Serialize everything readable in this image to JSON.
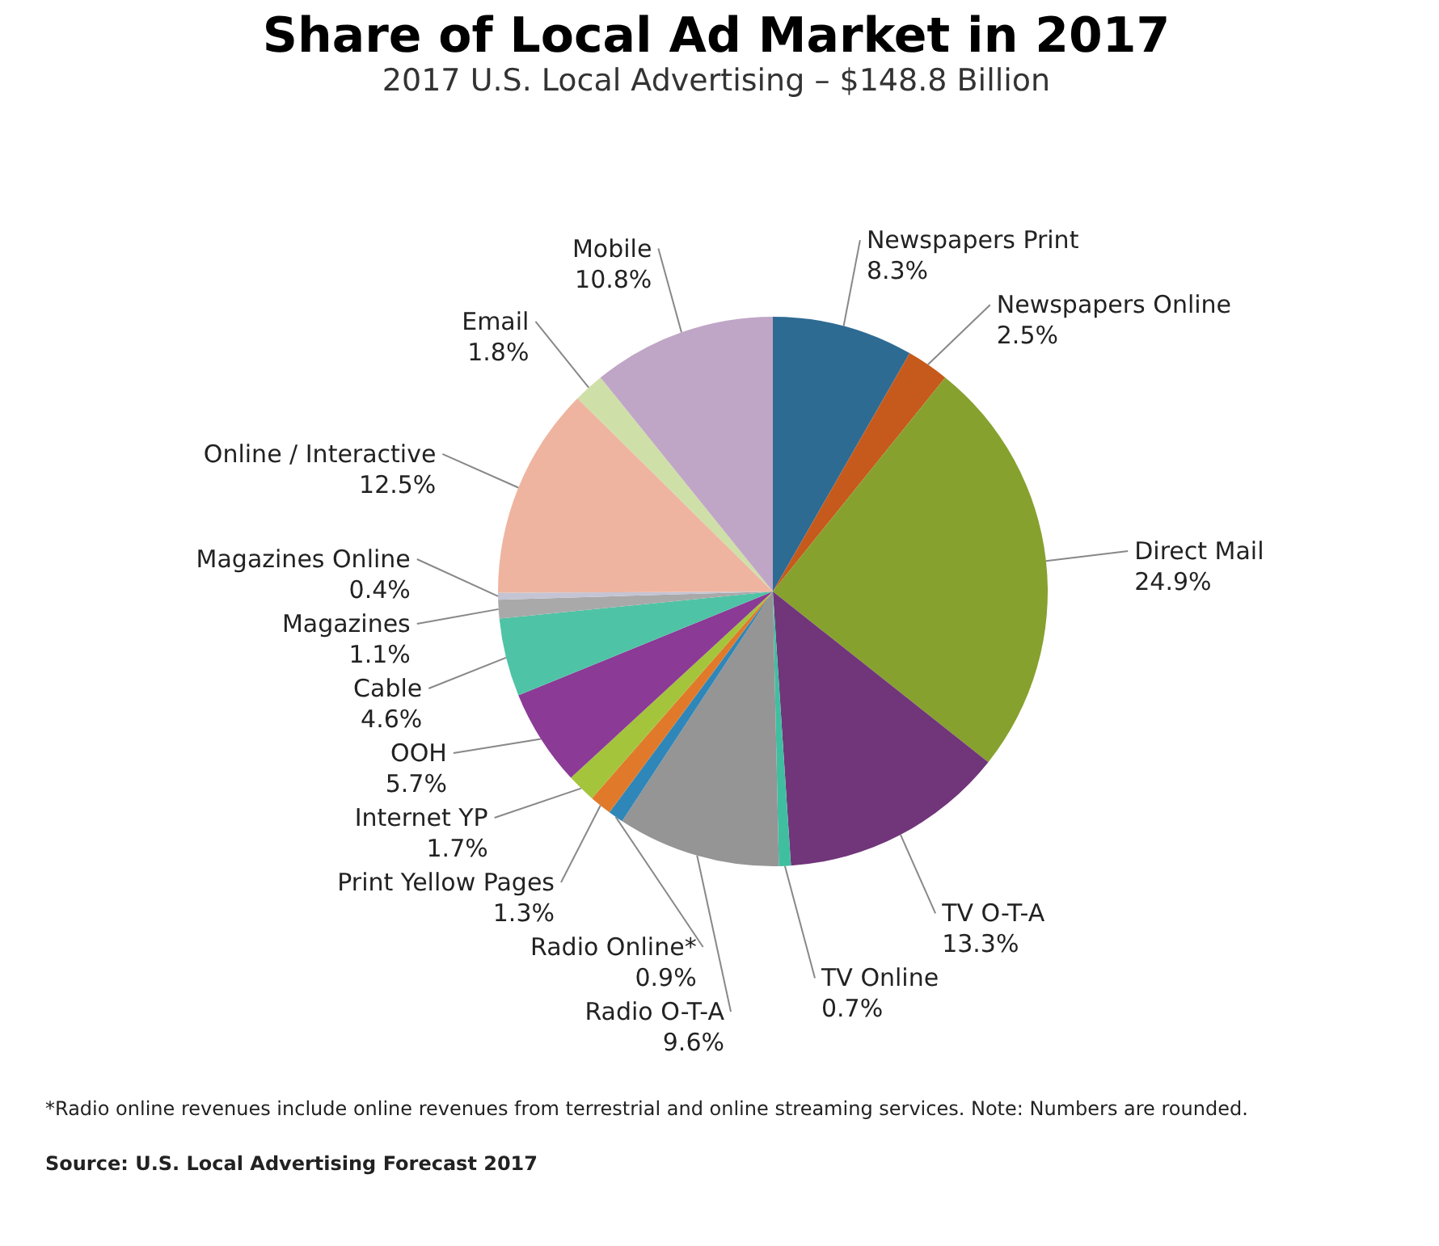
{
  "chart_data": {
    "type": "pie",
    "title": "Share of Local Ad Market in 2017",
    "subtitle": "2017 U.S. Local Advertising – $148.8 Billion",
    "categories": [
      "Newspapers Print",
      "Newspapers Online",
      "Direct Mail",
      "TV O-T-A",
      "TV Online",
      "Radio O-T-A",
      "Radio Online*",
      "Print Yellow Pages",
      "Internet YP",
      "OOH",
      "Cable",
      "Magazines",
      "Magazines Online",
      "Online / Interactive",
      "Email",
      "Mobile"
    ],
    "values": [
      8.3,
      2.5,
      24.9,
      13.3,
      0.7,
      9.6,
      0.9,
      1.3,
      1.7,
      5.7,
      4.6,
      1.1,
      0.4,
      12.5,
      1.8,
      10.8
    ],
    "value_labels": [
      "8.3%",
      "2.5%",
      "24.9%",
      "13.3%",
      "0.7%",
      "9.6%",
      "0.9%",
      "1.3%",
      "1.7%",
      "5.7%",
      "4.6%",
      "1.1%",
      "0.4%",
      "12.5%",
      "1.8%",
      "10.8%"
    ],
    "colors": [
      "#2e6b93",
      "#c55a1c",
      "#86a12e",
      "#71357a",
      "#3fbfa0",
      "#959595",
      "#2f86b8",
      "#e07a2a",
      "#a4c43c",
      "#8b3a96",
      "#4fc3a5",
      "#a9a9a9",
      "#c4c4d4",
      "#efb49f",
      "#cfdfa8",
      "#c0a6c6"
    ],
    "annotations": [
      "*Radio online revenues include online revenues from terrestrial and online streaming services. Note: Numbers are rounded.",
      "Source: U.S. Local Advertising Forecast 2017"
    ]
  }
}
